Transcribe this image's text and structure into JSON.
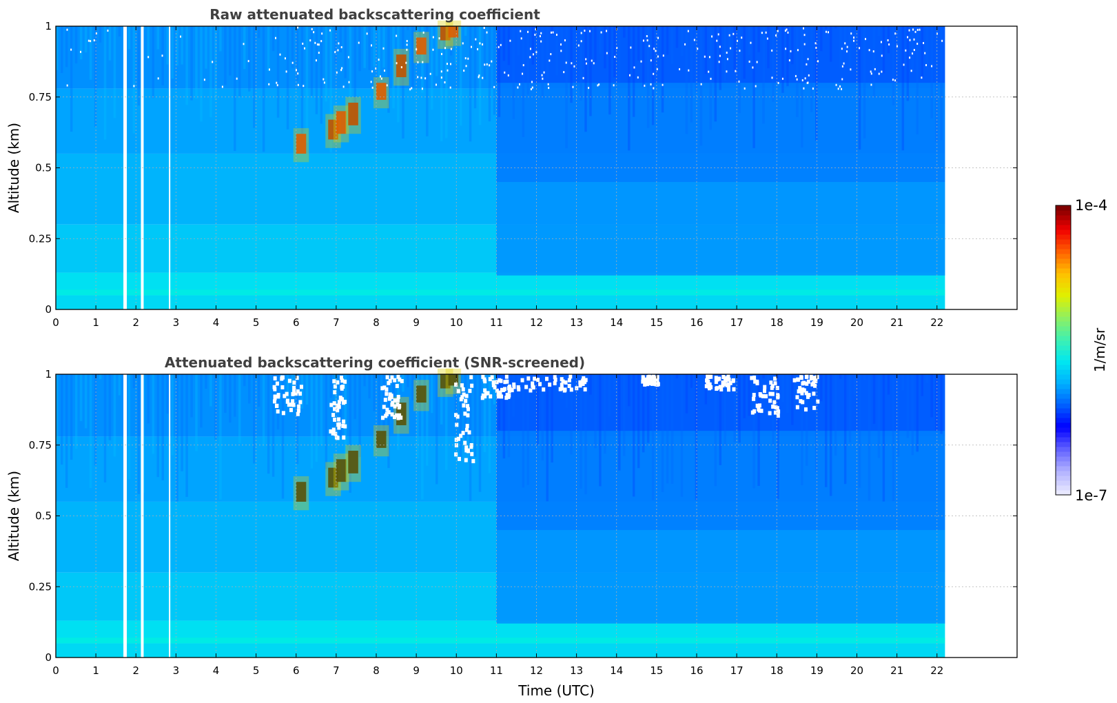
{
  "chart_data": [
    {
      "type": "heatmap",
      "title": "Raw attenuated backscattering coefficient",
      "xlabel": "",
      "ylabel": "Altitude (km)",
      "xlim": [
        0,
        24
      ],
      "ylim": [
        0,
        1
      ],
      "x_ticks": [
        0,
        1,
        2,
        3,
        4,
        5,
        6,
        7,
        8,
        9,
        10,
        11,
        12,
        13,
        14,
        15,
        16,
        17,
        18,
        19,
        20,
        21,
        22
      ],
      "y_ticks": [
        {
          "value": 0,
          "label": "0"
        },
        {
          "value": 0.25,
          "label": "0.25"
        },
        {
          "value": 0.5,
          "label": "0.5"
        },
        {
          "value": 0.75,
          "label": "0.75"
        },
        {
          "value": 1,
          "label": "1"
        }
      ],
      "data_extent_x": [
        0,
        22.2
      ],
      "grid": true,
      "gaps_hours": [
        1.73,
        2.15,
        2.85
      ],
      "screened": false
    },
    {
      "type": "heatmap",
      "title": "Attenuated backscattering coefficient (SNR-screened)",
      "xlabel": "Time (UTC)",
      "ylabel": "Altitude (km)",
      "xlim": [
        0,
        24
      ],
      "ylim": [
        0,
        1
      ],
      "x_ticks": [
        0,
        1,
        2,
        3,
        4,
        5,
        6,
        7,
        8,
        9,
        10,
        11,
        12,
        13,
        14,
        15,
        16,
        17,
        18,
        19,
        20,
        21,
        22
      ],
      "y_ticks": [
        {
          "value": 0,
          "label": "0"
        },
        {
          "value": 0.25,
          "label": "0.25"
        },
        {
          "value": 0.5,
          "label": "0.5"
        },
        {
          "value": 0.75,
          "label": "0.75"
        },
        {
          "value": 1,
          "label": "1"
        }
      ],
      "data_extent_x": [
        0,
        22.2
      ],
      "grid": true,
      "gaps_hours": [
        1.73,
        2.15,
        2.85
      ],
      "screened": true
    }
  ],
  "colorbar": {
    "label": "1/m/sr",
    "max_label": "1e-4",
    "min_label": "1e-7",
    "colors": [
      "#e8e8ff",
      "#b0b0ff",
      "#6060ff",
      "#0000ff",
      "#0060ff",
      "#00b0ff",
      "#00e8f0",
      "#40f0b0",
      "#90f060",
      "#e0f000",
      "#ffc000",
      "#ff6000",
      "#f00000",
      "#800000"
    ]
  }
}
